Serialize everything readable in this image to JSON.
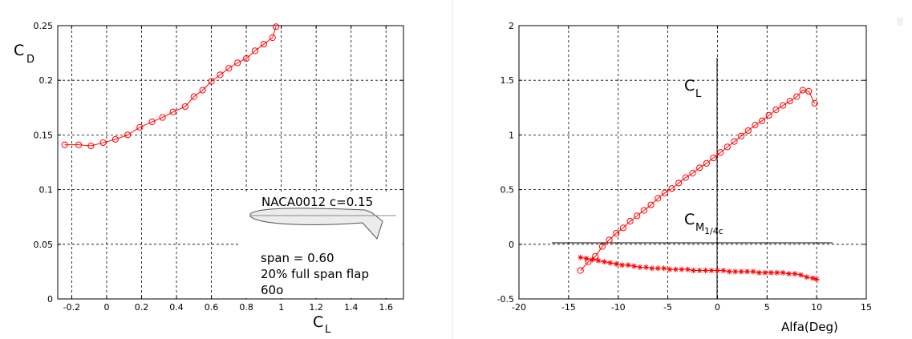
{
  "annotations": {
    "airfoil": "NACA0012 c=0.15",
    "span": "span = 0.60",
    "flap": "20% full span flap",
    "angle": "60o"
  },
  "colors": {
    "series": "#ff0000",
    "axes": "#000000",
    "grid": "#000000"
  },
  "chart_data": [
    {
      "type": "line",
      "xlabel": "C",
      "xlabel_sub": "L",
      "ylabel": "C",
      "ylabel_sub": "D",
      "xlim": [
        -0.28,
        1.7
      ],
      "ylim": [
        0,
        0.25
      ],
      "xticks": [
        -0.2,
        0,
        0.2,
        0.4,
        0.6,
        0.8,
        1,
        1.2,
        1.4,
        1.6
      ],
      "xtick_labels": [
        "-0.2",
        "0",
        "0.2",
        "0.4",
        "0.6",
        "0.8",
        "1",
        "1.2",
        "1.4",
        "1.6"
      ],
      "yticks": [
        0,
        0.05,
        0.1,
        0.15,
        0.2,
        0.25
      ],
      "ytick_labels": [
        "0",
        "0.05",
        "0.1",
        "0.15",
        "0.2",
        "0.25"
      ],
      "grid": true,
      "series": [
        {
          "marker": "circle",
          "x": [
            -0.24,
            -0.16,
            -0.09,
            -0.02,
            0.05,
            0.12,
            0.19,
            0.26,
            0.32,
            0.38,
            0.45,
            0.5,
            0.55,
            0.6,
            0.65,
            0.7,
            0.75,
            0.8,
            0.85,
            0.9,
            0.95,
            0.97
          ],
          "y": [
            0.141,
            0.141,
            0.14,
            0.143,
            0.146,
            0.15,
            0.157,
            0.162,
            0.166,
            0.171,
            0.176,
            0.185,
            0.191,
            0.199,
            0.205,
            0.211,
            0.216,
            0.22,
            0.227,
            0.233,
            0.239,
            0.249
          ]
        }
      ]
    },
    {
      "type": "line",
      "xlabel": "Alfa(Deg)",
      "xlim": [
        -20,
        15
      ],
      "ylim": [
        -0.5,
        2
      ],
      "xticks": [
        -20,
        -15,
        -10,
        -5,
        0,
        5,
        10,
        15
      ],
      "xtick_labels": [
        "-20",
        "-15",
        "-10",
        "-5",
        "0",
        "5",
        "10",
        "15"
      ],
      "yticks": [
        -0.5,
        0,
        0.5,
        1,
        1.5,
        2
      ],
      "ytick_labels": [
        "-0.5",
        "0",
        "0.5",
        "1",
        "1.5",
        "2"
      ],
      "grid": true,
      "labels": {
        "cl": "C",
        "cl_sub": "L",
        "cm": "C",
        "cm_sub": "M",
        "cm_subsub": "1/4c"
      },
      "series": [
        {
          "marker": "circle",
          "x": [
            -13.8,
            -13.0,
            -12.3,
            -11.6,
            -10.9,
            -10.2,
            -9.5,
            -8.8,
            -8.1,
            -7.4,
            -6.7,
            -6.0,
            -5.3,
            -4.6,
            -3.9,
            -3.2,
            -2.5,
            -1.8,
            -1.1,
            -0.4,
            0.3,
            1.0,
            1.7,
            2.4,
            3.1,
            3.8,
            4.5,
            5.2,
            5.9,
            6.6,
            7.3,
            8.0,
            8.6,
            9.2,
            9.8
          ],
          "y": [
            -0.24,
            -0.16,
            -0.11,
            -0.02,
            0.04,
            0.1,
            0.15,
            0.21,
            0.26,
            0.31,
            0.36,
            0.42,
            0.47,
            0.51,
            0.56,
            0.61,
            0.65,
            0.7,
            0.74,
            0.79,
            0.84,
            0.89,
            0.94,
            0.99,
            1.04,
            1.09,
            1.13,
            1.18,
            1.23,
            1.27,
            1.31,
            1.35,
            1.41,
            1.4,
            1.29
          ]
        },
        {
          "marker": "star",
          "x": [
            -13.8,
            -13.2,
            -12.6,
            -12.0,
            -11.4,
            -10.8,
            -10.2,
            -9.6,
            -9.0,
            -8.4,
            -7.8,
            -7.2,
            -6.6,
            -6.0,
            -5.4,
            -4.8,
            -4.2,
            -3.6,
            -3.0,
            -2.4,
            -1.8,
            -1.2,
            -0.6,
            0.0,
            0.6,
            1.2,
            1.8,
            2.4,
            3.0,
            3.6,
            4.2,
            4.8,
            5.4,
            6.0,
            6.6,
            7.2,
            7.8,
            8.4,
            9.0,
            9.6,
            10.0
          ],
          "y": [
            -0.12,
            -0.13,
            -0.14,
            -0.15,
            -0.16,
            -0.17,
            -0.18,
            -0.19,
            -0.19,
            -0.2,
            -0.21,
            -0.21,
            -0.22,
            -0.22,
            -0.22,
            -0.23,
            -0.23,
            -0.23,
            -0.23,
            -0.24,
            -0.24,
            -0.24,
            -0.24,
            -0.24,
            -0.24,
            -0.25,
            -0.25,
            -0.25,
            -0.25,
            -0.25,
            -0.26,
            -0.26,
            -0.26,
            -0.26,
            -0.26,
            -0.27,
            -0.27,
            -0.28,
            -0.3,
            -0.31,
            -0.32
          ]
        }
      ]
    }
  ]
}
